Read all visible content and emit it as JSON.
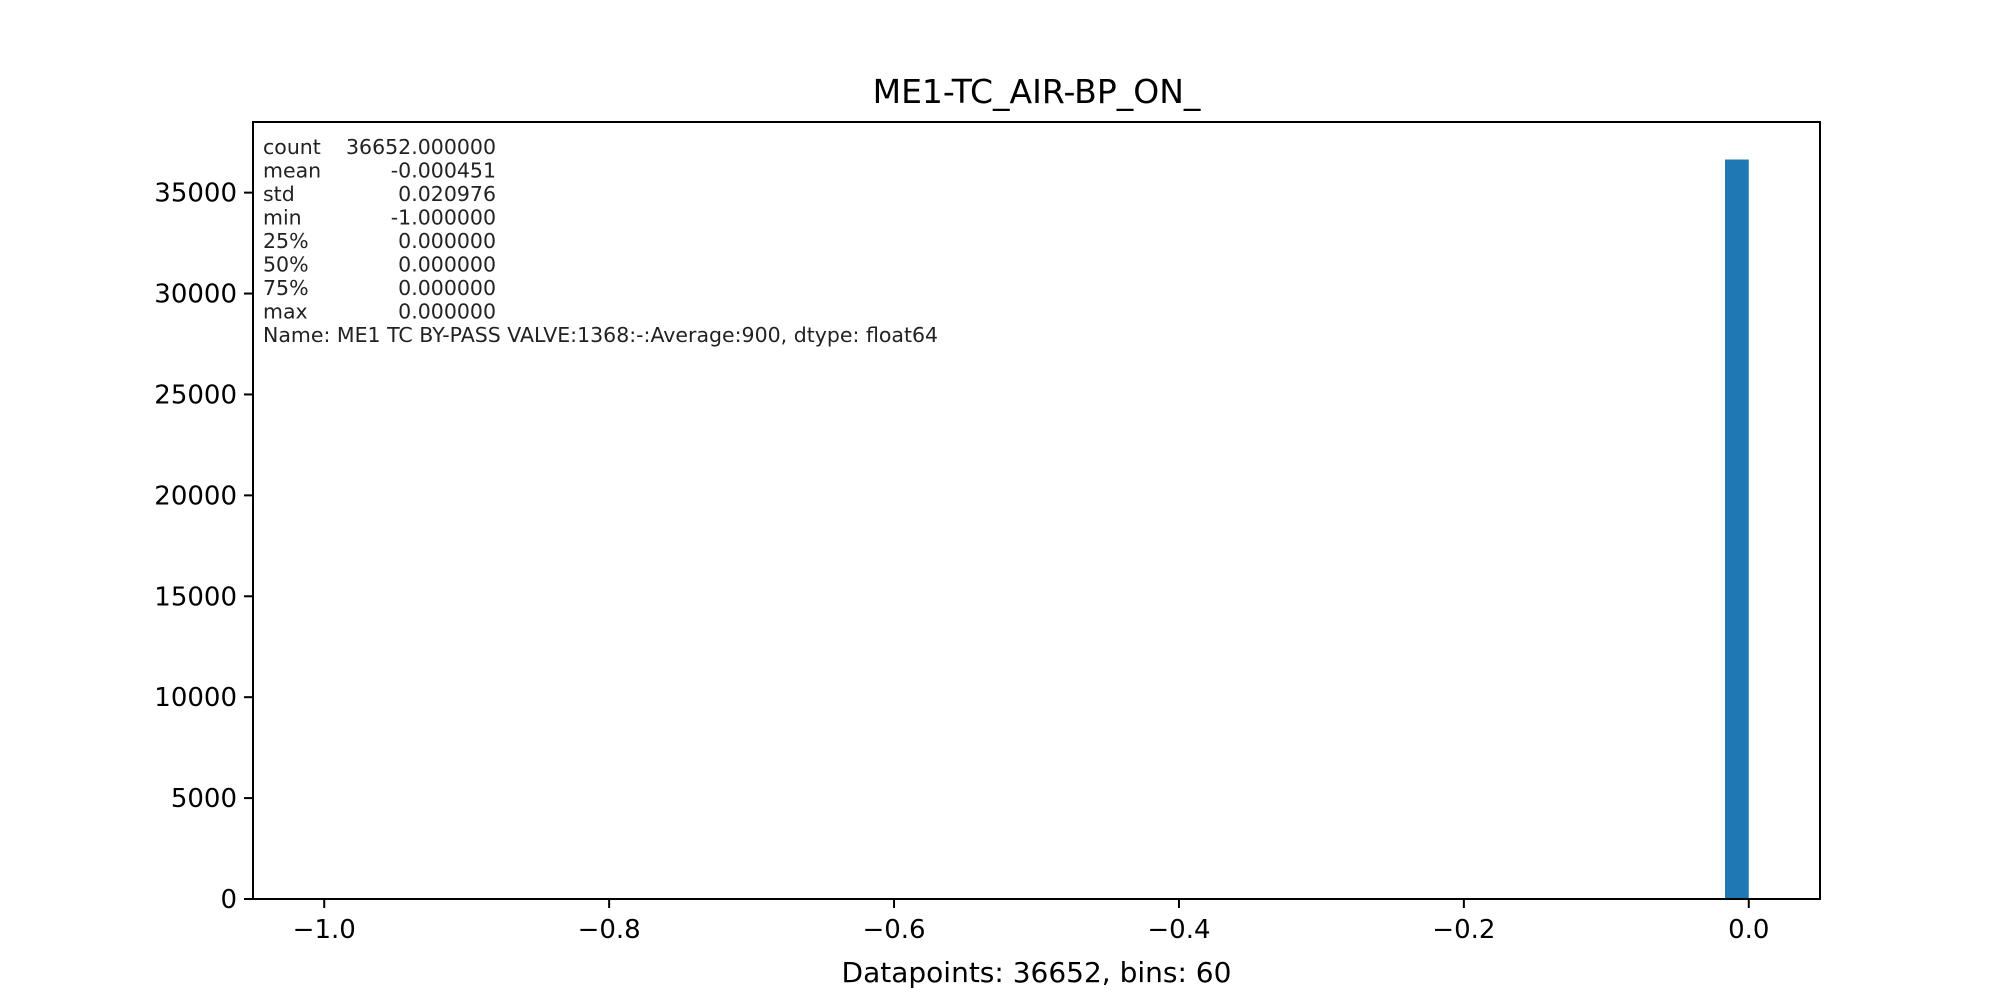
{
  "chart_data": {
    "type": "bar",
    "title": "ME1-TC_AIR-BP_ON_",
    "xlabel": "Datapoints: 36652, bins: 60",
    "ylabel": "",
    "xlim": [
      -1.05,
      0.05
    ],
    "ylim": [
      0,
      38500
    ],
    "xticks": [
      -1.0,
      -0.8,
      -0.6,
      -0.4,
      -0.2,
      0.0
    ],
    "xtick_labels": [
      "−1.0",
      "−0.8",
      "−0.6",
      "−0.4",
      "−0.2",
      "0.0"
    ],
    "yticks": [
      0,
      5000,
      10000,
      15000,
      20000,
      25000,
      30000,
      35000
    ],
    "ytick_labels": [
      "0",
      "5000",
      "10000",
      "15000",
      "20000",
      "25000",
      "30000",
      "35000"
    ],
    "grid": false,
    "bar_color": "#1f77b4",
    "bins": [
      {
        "x0": -0.016667,
        "x1": 0.0,
        "count": 36641
      }
    ],
    "stats_annotation": [
      {
        "label": "count",
        "value": "36652.000000"
      },
      {
        "label": "mean",
        "value": "-0.000451"
      },
      {
        "label": "std",
        "value": "0.020976"
      },
      {
        "label": "min",
        "value": "-1.000000"
      },
      {
        "label": "25%",
        "value": "0.000000"
      },
      {
        "label": "50%",
        "value": "0.000000"
      },
      {
        "label": "75%",
        "value": "0.000000"
      },
      {
        "label": "max",
        "value": "0.000000"
      }
    ],
    "stats_footer": "Name: ME1 TC BY-PASS VALVE:1368:-:Average:900, dtype: float64"
  }
}
